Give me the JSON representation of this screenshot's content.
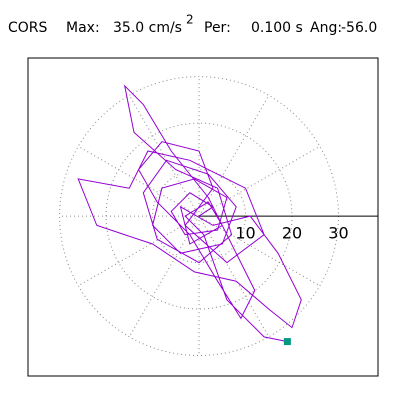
{
  "header": {
    "station": "CORS",
    "max_label": "Max:",
    "max_value": "35.0 cm/s",
    "max_exp": "2",
    "per_label": "Per:",
    "per_value": "0.100 s",
    "ang_label": "Ang:",
    "ang_value": "-56.0"
  },
  "chart_data": {
    "type": "hodograph",
    "x": [
      0,
      3,
      -2,
      -6,
      -3,
      4,
      6,
      -1,
      -8,
      -10,
      -4,
      5,
      8,
      2,
      -7,
      -12,
      -9,
      0,
      7,
      4,
      -5,
      -14,
      -16,
      -12,
      -6,
      2,
      8,
      12,
      9,
      4,
      -2,
      -9,
      -13,
      -8,
      0,
      3,
      -3,
      6,
      14,
      10,
      -2,
      -11,
      -15,
      -26,
      -22,
      -10,
      -1,
      8,
      15,
      20,
      22,
      17,
      11,
      3,
      -4,
      -2,
      5,
      2,
      -3,
      1,
      6,
      14,
      19
    ],
    "series": [
      {
        "color": "#9400d3",
        "values": [
          0,
          2,
          5,
          1,
          -4,
          -3,
          4,
          8,
          6,
          -2,
          -8,
          -6,
          2,
          9,
          12,
          5,
          -5,
          -10,
          -4,
          6,
          10,
          18,
          28,
          24,
          14,
          4,
          -8,
          -16,
          -22,
          -14,
          -4,
          3,
          10,
          16,
          14,
          6,
          -2,
          -10,
          -4,
          6,
          12,
          14,
          6,
          8,
          -2,
          -6,
          -12,
          -14,
          -20,
          -24,
          -18,
          -8,
          0,
          -2,
          2,
          -6,
          -2,
          3,
          0,
          -4,
          -18,
          -26,
          -27
        ]
      }
    ],
    "end_marker_color": "#009980",
    "xlim": [
      -36.8,
      38.5
    ],
    "ylim": [
      -34.4,
      34
    ],
    "rticks": [
      10,
      20,
      30
    ]
  }
}
